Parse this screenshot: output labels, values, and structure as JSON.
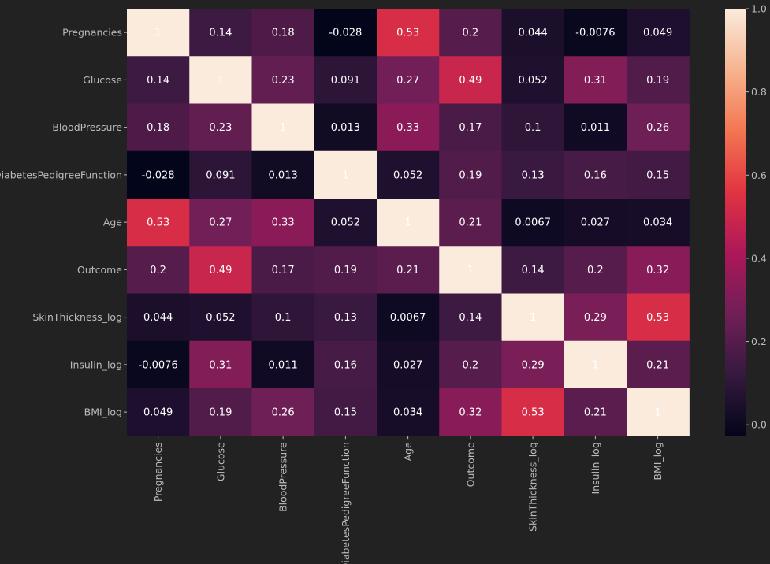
{
  "chart_data": {
    "type": "heatmap",
    "title": "",
    "xlabel": "",
    "ylabel": "",
    "rows": [
      "Pregnancies",
      "Glucose",
      "BloodPressure",
      "DiabetesPedigreeFunction",
      "Age",
      "Outcome",
      "SkinThickness_log",
      "Insulin_log",
      "BMI_log"
    ],
    "columns": [
      "Pregnancies",
      "Glucose",
      "BloodPressure",
      "DiabetesPedigreeFunction",
      "Age",
      "Outcome",
      "SkinThickness_log",
      "Insulin_log",
      "BMI_log"
    ],
    "values": [
      [
        1,
        0.14,
        0.18,
        -0.028,
        0.53,
        0.2,
        0.044,
        -0.0076,
        0.049
      ],
      [
        0.14,
        1,
        0.23,
        0.091,
        0.27,
        0.49,
        0.052,
        0.31,
        0.19
      ],
      [
        0.18,
        0.23,
        1,
        0.013,
        0.33,
        0.17,
        0.1,
        0.011,
        0.26
      ],
      [
        -0.028,
        0.091,
        0.013,
        1,
        0.052,
        0.19,
        0.13,
        0.16,
        0.15
      ],
      [
        0.53,
        0.27,
        0.33,
        0.052,
        1,
        0.21,
        0.0067,
        0.027,
        0.034
      ],
      [
        0.2,
        0.49,
        0.17,
        0.19,
        0.21,
        1,
        0.14,
        0.2,
        0.32
      ],
      [
        0.044,
        0.052,
        0.1,
        0.13,
        0.0067,
        0.14,
        1,
        0.29,
        0.53
      ],
      [
        -0.0076,
        0.31,
        0.011,
        0.16,
        0.027,
        0.2,
        0.29,
        1,
        0.21
      ],
      [
        0.049,
        0.19,
        0.26,
        0.15,
        0.034,
        0.32,
        0.53,
        0.21,
        1
      ]
    ],
    "annotations": [
      [
        "1",
        "0.14",
        "0.18",
        "-0.028",
        "0.53",
        "0.2",
        "0.044",
        "-0.0076",
        "0.049"
      ],
      [
        "0.14",
        "1",
        "0.23",
        "0.091",
        "0.27",
        "0.49",
        "0.052",
        "0.31",
        "0.19"
      ],
      [
        "0.18",
        "0.23",
        "1",
        "0.013",
        "0.33",
        "0.17",
        "0.1",
        "0.011",
        "0.26"
      ],
      [
        "-0.028",
        "0.091",
        "0.013",
        "1",
        "0.052",
        "0.19",
        "0.13",
        "0.16",
        "0.15"
      ],
      [
        "0.53",
        "0.27",
        "0.33",
        "0.052",
        "1",
        "0.21",
        "0.0067",
        "0.027",
        "0.034"
      ],
      [
        "0.2",
        "0.49",
        "0.17",
        "0.19",
        "0.21",
        "1",
        "0.14",
        "0.2",
        "0.32"
      ],
      [
        "0.044",
        "0.052",
        "0.1",
        "0.13",
        "0.0067",
        "0.14",
        "1",
        "0.29",
        "0.53"
      ],
      [
        "-0.0076",
        "0.31",
        "0.011",
        "0.16",
        "0.027",
        "0.2",
        "0.29",
        "1",
        "0.21"
      ],
      [
        "0.049",
        "0.19",
        "0.26",
        "0.15",
        "0.034",
        "0.32",
        "0.53",
        "0.21",
        "1"
      ]
    ],
    "colorbar": {
      "range": [
        -0.028,
        1.0
      ],
      "ticks": [
        0.0,
        0.2,
        0.4,
        0.6,
        0.8,
        1.0
      ],
      "tick_labels": [
        "0.0",
        "0.2",
        "0.4",
        "0.6",
        "0.8",
        "1.0"
      ]
    },
    "colormap": "rocket",
    "grid": false,
    "legend": "colorbar right"
  },
  "colors": {
    "background": "#222222",
    "label_text": "#bbbbbb",
    "annotation_text": "#ffffff",
    "colormap_stops": [
      "#03051a",
      "#35193e",
      "#701f57",
      "#ad1759",
      "#e13342",
      "#f37651",
      "#f6b48f",
      "#faebdd"
    ]
  }
}
